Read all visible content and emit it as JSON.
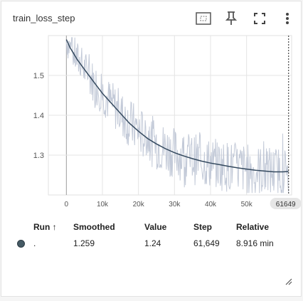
{
  "card": {
    "title": "train_loss_step"
  },
  "icons": {
    "fit_domain": "fit-domain-icon",
    "pin": "pin-icon",
    "fullscreen": "fullscreen-icon",
    "more": "more-vert-icon",
    "resize": "resize-handle-icon"
  },
  "chart_data": {
    "type": "line",
    "title": "train_loss_step",
    "xlabel": "",
    "ylabel": "",
    "x_ticks": [
      "0",
      "10k",
      "20k",
      "30k",
      "40k",
      "50k"
    ],
    "x_tick_values": [
      0,
      10000,
      20000,
      30000,
      40000,
      50000
    ],
    "y_ticks": [
      "1.5",
      "1.4",
      "1.3"
    ],
    "y_tick_values": [
      1.5,
      1.4,
      1.3
    ],
    "xlim": [
      -5000,
      62500
    ],
    "ylim": [
      1.2,
      1.6
    ],
    "cursor_step": 61649,
    "cursor_label": "61649",
    "series": [
      {
        "name": "Smoothed",
        "color": "#34495e",
        "x": [
          0,
          1000,
          2000,
          3000,
          5000,
          7500,
          10000,
          12500,
          15000,
          17500,
          20000,
          22500,
          25000,
          27500,
          30000,
          32500,
          35000,
          37500,
          40000,
          42500,
          45000,
          47500,
          50000,
          52500,
          55000,
          57500,
          60000,
          61649
        ],
        "y": [
          1.59,
          1.57,
          1.555,
          1.54,
          1.515,
          1.485,
          1.455,
          1.43,
          1.405,
          1.38,
          1.36,
          1.342,
          1.328,
          1.316,
          1.306,
          1.298,
          1.291,
          1.285,
          1.28,
          1.276,
          1.272,
          1.268,
          1.265,
          1.262,
          1.26,
          1.258,
          1.258,
          1.259
        ]
      },
      {
        "name": "Raw",
        "color": "#c3cad8",
        "x": [
          0,
          61649
        ],
        "y": [
          1.59,
          1.24
        ]
      }
    ]
  },
  "table": {
    "headers": {
      "run": "Run ↑",
      "smoothed": "Smoothed",
      "value": "Value",
      "step": "Step",
      "relative": "Relative"
    },
    "rows": [
      {
        "run": ".",
        "smoothed": "1.259",
        "value": "1.24",
        "step": "61,649",
        "relative": "8.916 min",
        "color": "#455a64"
      }
    ]
  }
}
